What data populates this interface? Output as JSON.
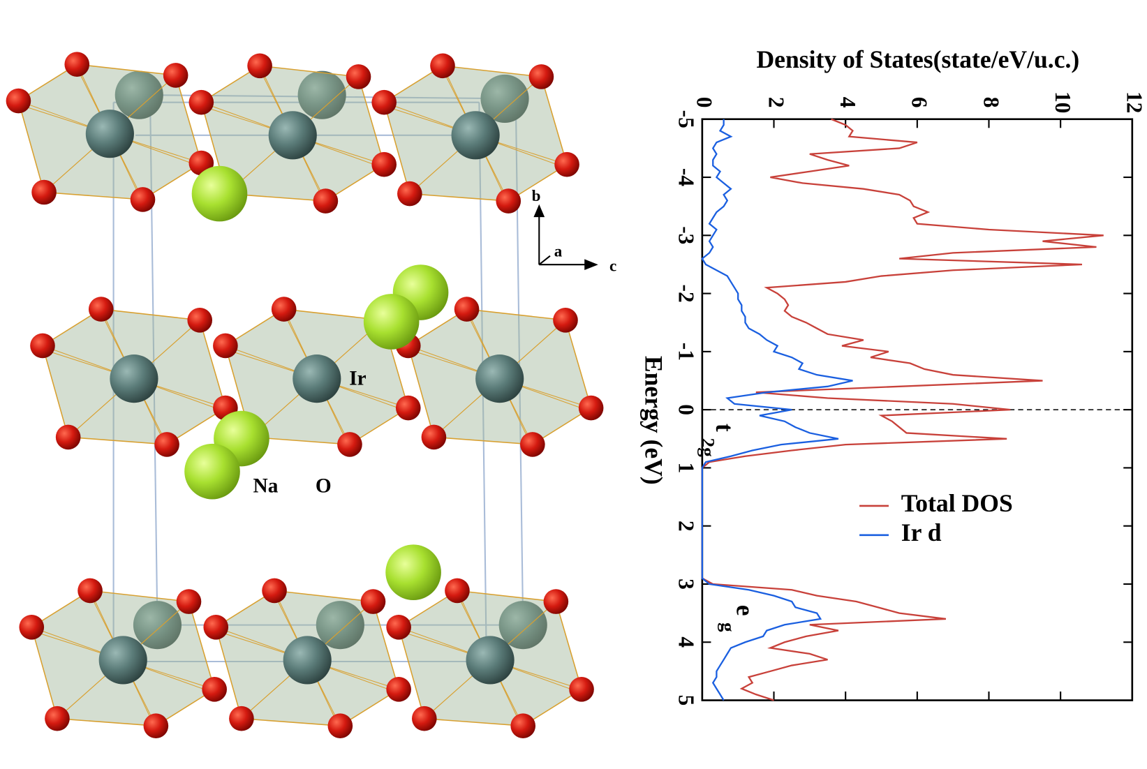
{
  "structure": {
    "labels": [
      "Ir",
      "Na",
      "O"
    ],
    "axes": [
      "b",
      "a",
      "c"
    ]
  },
  "chart_data": {
    "type": "line",
    "orientation": "vertical",
    "title": "Density of States(state/eV/u.c.)",
    "xlabel": "Energy (eV)",
    "x": [
      -5,
      -4.9,
      -4.8,
      -4.7,
      -4.6,
      -4.5,
      -4.4,
      -4.3,
      -4.2,
      -4.1,
      -4,
      -3.9,
      -3.8,
      -3.7,
      -3.6,
      -3.5,
      -3.4,
      -3.3,
      -3.2,
      -3.1,
      -3,
      -2.9,
      -2.8,
      -2.7,
      -2.6,
      -2.5,
      -2.4,
      -2.3,
      -2.2,
      -2.1,
      -2,
      -1.9,
      -1.8,
      -1.7,
      -1.6,
      -1.5,
      -1.4,
      -1.3,
      -1.2,
      -1.1,
      -1,
      -0.9,
      -0.8,
      -0.7,
      -0.6,
      -0.5,
      -0.4,
      -0.3,
      -0.2,
      -0.1,
      0,
      0.1,
      0.2,
      0.3,
      0.4,
      0.5,
      0.6,
      0.7,
      0.8,
      0.9,
      1,
      1.1,
      1.2,
      1.3,
      1.4,
      1.5,
      1.6,
      1.7,
      1.8,
      1.9,
      2,
      2.1,
      2.2,
      2.3,
      2.4,
      2.5,
      2.6,
      2.7,
      2.8,
      2.9,
      3,
      3.1,
      3.2,
      3.3,
      3.4,
      3.5,
      3.6,
      3.7,
      3.8,
      3.9,
      4,
      4.1,
      4.2,
      4.3,
      4.4,
      4.5,
      4.6,
      4.7,
      4.8,
      4.9,
      5
    ],
    "series": [
      {
        "name": "Total DOS",
        "color": "#c8413a",
        "values": [
          3.6,
          4.0,
          4.2,
          4.1,
          6.0,
          5.5,
          3.0,
          3.5,
          4.1,
          3.0,
          1.9,
          2.8,
          4.5,
          5.5,
          5.8,
          5.9,
          6.3,
          5.9,
          6.0,
          8.0,
          11.2,
          9.5,
          11.0,
          7.0,
          5.5,
          10.6,
          7.0,
          5.0,
          4.0,
          1.8,
          2.1,
          2.3,
          2.4,
          2.3,
          2.5,
          2.9,
          3.2,
          3.5,
          4.5,
          3.9,
          5.2,
          4.7,
          5.8,
          6.2,
          7.0,
          9.5,
          5.5,
          1.5,
          3.5,
          7.0,
          8.6,
          5.0,
          5.3,
          5.5,
          5.7,
          8.5,
          4.0,
          2.5,
          1.2,
          0.2,
          0,
          0,
          0,
          0,
          0,
          0,
          0,
          0,
          0,
          0,
          0,
          0,
          0,
          0,
          0,
          0,
          0,
          0,
          0,
          0,
          0.3,
          2.5,
          3.2,
          4.3,
          4.9,
          5.5,
          6.8,
          3.0,
          3.8,
          2.9,
          2.3,
          1.9,
          3.0,
          3.5,
          2.5,
          1.9,
          1.3,
          1.4,
          1.1,
          1.5,
          2.0
        ]
      },
      {
        "name": "Ir d",
        "color": "#1a5fe0",
        "values": [
          0.6,
          0.6,
          0.5,
          0.8,
          0.4,
          0.3,
          0.4,
          0.3,
          0.3,
          0.5,
          0.4,
          0.6,
          0.8,
          0.6,
          0.7,
          0.6,
          0.4,
          0.3,
          0.2,
          0.4,
          0.3,
          0.2,
          0.3,
          0.2,
          0.0,
          0.1,
          0.4,
          0.7,
          0.8,
          0.9,
          1.0,
          1.0,
          1.1,
          1.1,
          1.2,
          1.2,
          1.3,
          1.6,
          1.8,
          2.1,
          2.0,
          2.5,
          2.8,
          2.7,
          3.2,
          4.2,
          3.5,
          1.8,
          0.7,
          0.9,
          2.5,
          1.6,
          2.3,
          2.6,
          3.0,
          3.8,
          2.2,
          1.4,
          0.8,
          0.1,
          0,
          0,
          0,
          0,
          0,
          0,
          0,
          0,
          0,
          0,
          0,
          0,
          0,
          0,
          0,
          0,
          0,
          0,
          0,
          0,
          0.2,
          1.3,
          2.0,
          2.5,
          2.6,
          3.2,
          3.3,
          2.3,
          1.8,
          1.7,
          1.2,
          0.8,
          0.7,
          0.6,
          0.5,
          0.4,
          0.4,
          0.3,
          0.4,
          0.5,
          0.6
        ]
      }
    ],
    "xlim": [
      -5,
      5
    ],
    "xticks": [
      -5,
      -4,
      -3,
      -2,
      -1,
      0,
      1,
      2,
      3,
      4,
      5
    ],
    "ylim": [
      0,
      12
    ],
    "yticks": [
      0,
      2,
      4,
      6,
      8,
      10,
      12
    ],
    "fermi_level": 0,
    "annotations": [
      {
        "text": "t",
        "sub": "2g"
      },
      {
        "text": "e",
        "sub": "g"
      }
    ],
    "legend": "center-right"
  }
}
